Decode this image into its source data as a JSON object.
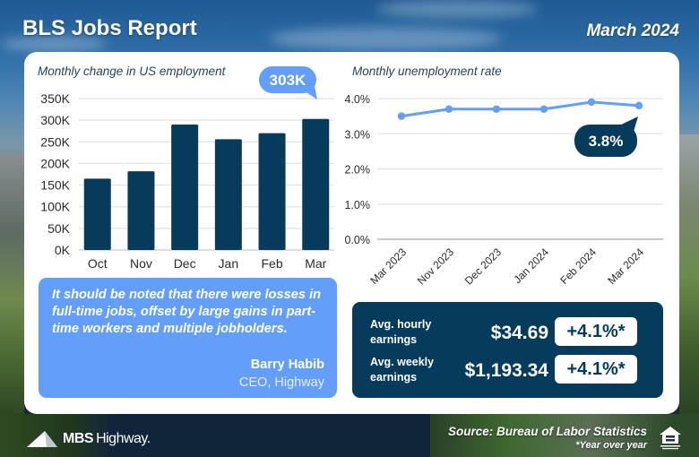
{
  "header": {
    "title": "BLS Jobs Report",
    "date": "March 2024"
  },
  "colors": {
    "bar": "#063b5c",
    "line": "#639efa",
    "accent_light": "#639efa",
    "accent_dark": "#063b5c",
    "grid": "#e2e2e2"
  },
  "chart_data": [
    {
      "type": "bar",
      "title": "Monthly change in US employment",
      "categories": [
        "Oct",
        "Nov",
        "Dec",
        "Jan",
        "Feb",
        "Mar"
      ],
      "values": [
        165000,
        182000,
        290000,
        256000,
        270000,
        303000
      ],
      "yticks": [
        "0K",
        "50K",
        "100K",
        "150K",
        "200K",
        "250K",
        "300K",
        "350K"
      ],
      "ylim": [
        0,
        350000
      ],
      "xlabel": "",
      "ylabel": "",
      "grid": true,
      "callout": {
        "label": "303K",
        "category": "Mar"
      }
    },
    {
      "type": "line",
      "title": "Monthly unemployment rate",
      "categories": [
        "Mar 2023",
        "Nov 2023",
        "Dec 2023",
        "Jan 2024",
        "Feb 2024",
        "Mar 2024"
      ],
      "values": [
        3.5,
        3.7,
        3.7,
        3.7,
        3.9,
        3.8
      ],
      "yticks": [
        "0.0%",
        "1.0%",
        "2.0%",
        "3.0%",
        "4.0%"
      ],
      "ylim": [
        0,
        4.0
      ],
      "xlabel": "",
      "ylabel": "",
      "grid": true,
      "callout": {
        "label": "3.8%",
        "category": "Mar 2024"
      }
    }
  ],
  "quote": {
    "text": "It should be noted that there were losses in full-time jobs, offset by large gains in part-time workers and multiple jobholders.",
    "author": "Barry Habib",
    "role": "CEO, Highway"
  },
  "earnings": [
    {
      "label_line1": "Avg. hourly",
      "label_line2": "earnings",
      "value": "$34.69",
      "change": "+4.1%*"
    },
    {
      "label_line1": "Avg. weekly",
      "label_line2": "earnings",
      "value": "$1,193.34",
      "change": "+4.1%*"
    }
  ],
  "footer": {
    "logo_bold": "MBS",
    "logo_light": "Highway.",
    "source": "Source: Bureau of Labor Statistics",
    "footnote": "*Year over year",
    "eho_icon": "equal-housing-opportunity-icon"
  }
}
